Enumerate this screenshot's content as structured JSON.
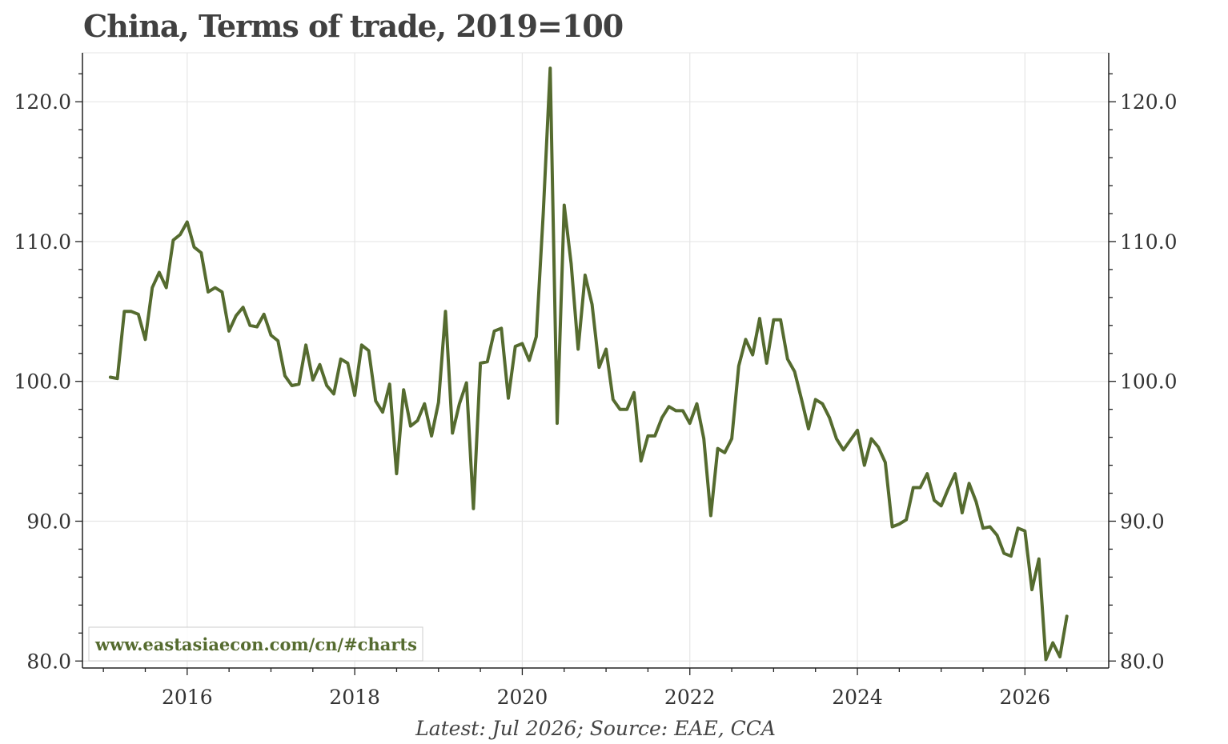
{
  "chart_data": {
    "type": "line",
    "title": "China, Terms of trade, 2019=100",
    "xlabel": "",
    "ylabel": "",
    "xlim": [
      2014.75,
      2027.0
    ],
    "ylim": [
      79.5,
      123.5
    ],
    "y_ticks": [
      80.0,
      90.0,
      100.0,
      110.0,
      120.0
    ],
    "y_tick_labels": [
      "80.0",
      "90.0",
      "100.0",
      "110.0",
      "120.0"
    ],
    "x_ticks": [
      2016,
      2018,
      2020,
      2022,
      2024,
      2026
    ],
    "x_tick_labels": [
      "2016",
      "2018",
      "2020",
      "2022",
      "2024",
      "2026"
    ],
    "grid": true,
    "legend": "none",
    "line_color": "#556b2f",
    "watermark": "www.eastasiaecon.com/cn/#charts",
    "caption": "Latest: Jul 2026; Source: EAE, CCA",
    "series": [
      {
        "start": "2015-02",
        "frequency": "monthly",
        "values": [
          100.3,
          100.2,
          105.0,
          105.0,
          104.8,
          103.0,
          106.7,
          107.8,
          106.7,
          110.1,
          110.5,
          111.4,
          109.6,
          109.2,
          106.4,
          106.7,
          106.4,
          103.6,
          104.7,
          105.3,
          104.0,
          103.9,
          104.8,
          103.3,
          102.9,
          100.4,
          99.7,
          99.8,
          102.6,
          100.1,
          101.2,
          99.7,
          99.1,
          101.6,
          101.3,
          99.0,
          102.6,
          102.2,
          98.6,
          97.8,
          99.8,
          93.4,
          99.4,
          96.8,
          97.2,
          98.4,
          96.1,
          98.5,
          105.0,
          96.3,
          98.4,
          99.9,
          90.9,
          101.3,
          101.4,
          103.6,
          103.8,
          98.8,
          102.5,
          102.7,
          101.5,
          103.2,
          112.0,
          122.4,
          97.0,
          112.6,
          108.4,
          102.3,
          107.6,
          105.5,
          101.0,
          102.3,
          98.7,
          98.0,
          98.0,
          99.2,
          94.3,
          96.1,
          96.1,
          97.4,
          98.2,
          97.9,
          97.9,
          97.0,
          98.4,
          95.9,
          90.4,
          95.2,
          94.9,
          95.9,
          101.1,
          103.0,
          101.9,
          104.5,
          101.3,
          104.4,
          104.4,
          101.6,
          100.7,
          98.7,
          96.6,
          98.7,
          98.4,
          97.4,
          95.9,
          95.1,
          95.8,
          96.5,
          94.0,
          95.9,
          95.3,
          94.2,
          89.6,
          89.8,
          90.1,
          92.4,
          92.4,
          93.4,
          91.5,
          91.1,
          92.3,
          93.4,
          90.6,
          92.7,
          91.4,
          89.5,
          89.6,
          89.0,
          87.7,
          87.5,
          89.5,
          89.3,
          85.1,
          87.3,
          80.1,
          81.3,
          80.3,
          83.2
        ]
      }
    ]
  }
}
